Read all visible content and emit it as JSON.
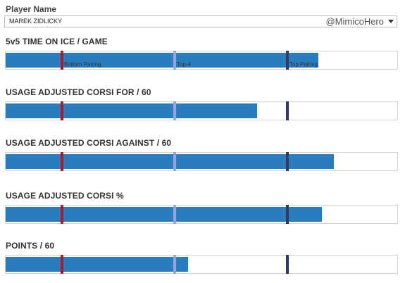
{
  "player": {
    "label": "Player Name",
    "selected": "MAREK ZIDLICKY",
    "handle": "@MimicoHero"
  },
  "markers": [
    {
      "name": "Bottom Pairing",
      "color": "#a51c30"
    },
    {
      "name": "Top-4",
      "color": "#94a6d8"
    },
    {
      "name": "Top Pairing",
      "color": "#2f3c66"
    }
  ],
  "bar_color": "#2b7bbf",
  "chart_data": {
    "type": "bar",
    "categories": [
      "5v5 TIME ON ICE / GAME",
      "USAGE ADJUSTED CORSI FOR / 60",
      "USAGE ADJUSTED CORSI AGAINST / 60",
      "USAGE ADJUSTED CORSI %",
      "POINTS / 60"
    ],
    "values": [
      0.795,
      0.64,
      0.835,
      0.805,
      0.465
    ],
    "reference_lines": {
      "Bottom Pairing": 0.143,
      "Top-4": 0.43,
      "Top Pairing": 0.716
    },
    "value_scale": "fraction of bar width"
  }
}
